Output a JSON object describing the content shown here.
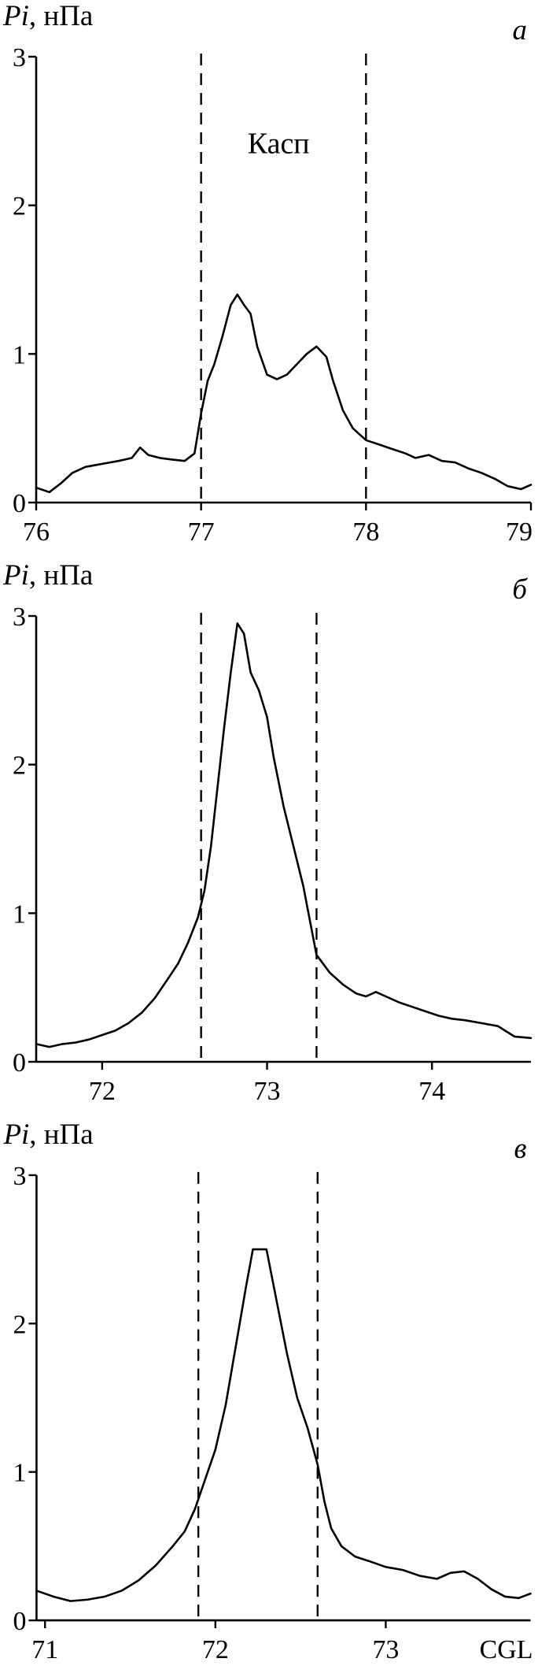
{
  "style": {
    "ink_color": "#000000",
    "background": "#ffffff"
  },
  "chart_data": [
    {
      "type": "line",
      "panel_label": "а",
      "ylabel": "Pi, нПа",
      "ylabel_var": "Pi",
      "ylabel_unit": ", нПа",
      "xlim": [
        76,
        79
      ],
      "ylim": [
        0,
        3
      ],
      "xticks": [
        76,
        77,
        78,
        79
      ],
      "yticks": [
        0,
        1,
        2,
        3
      ],
      "dashed_lines": [
        77,
        78
      ],
      "annotations": [
        {
          "text": "Касп",
          "x": 77.47,
          "y": 2.35
        }
      ],
      "x": [
        76.0,
        76.08,
        76.15,
        76.22,
        76.3,
        76.4,
        76.5,
        76.58,
        76.63,
        76.68,
        76.75,
        76.82,
        76.9,
        76.96,
        77.0,
        77.04,
        77.08,
        77.13,
        77.18,
        77.22,
        77.26,
        77.3,
        77.34,
        77.4,
        77.46,
        77.52,
        77.58,
        77.64,
        77.7,
        77.76,
        77.8,
        77.86,
        77.92,
        78.0,
        78.08,
        78.16,
        78.24,
        78.3,
        78.38,
        78.46,
        78.54,
        78.62,
        78.7,
        78.78,
        78.86,
        78.94,
        79.0
      ],
      "y": [
        0.1,
        0.07,
        0.13,
        0.2,
        0.24,
        0.26,
        0.28,
        0.3,
        0.37,
        0.32,
        0.3,
        0.29,
        0.28,
        0.33,
        0.6,
        0.82,
        0.93,
        1.12,
        1.33,
        1.4,
        1.33,
        1.27,
        1.05,
        0.86,
        0.83,
        0.86,
        0.93,
        1.0,
        1.05,
        0.98,
        0.82,
        0.62,
        0.5,
        0.42,
        0.39,
        0.36,
        0.33,
        0.3,
        0.32,
        0.28,
        0.27,
        0.23,
        0.2,
        0.16,
        0.11,
        0.09,
        0.12
      ]
    },
    {
      "type": "line",
      "panel_label": "б",
      "ylabel": "Pi, нПа",
      "ylabel_var": "Pi",
      "ylabel_unit": ", нПа",
      "xlim": [
        71.6,
        74.6
      ],
      "ylim": [
        0,
        3
      ],
      "xticks": [
        72,
        73,
        74
      ],
      "yticks": [
        0,
        1,
        2,
        3
      ],
      "dashed_lines": [
        72.6,
        73.3
      ],
      "annotations": [],
      "x": [
        71.6,
        71.68,
        71.76,
        71.84,
        71.92,
        72.0,
        72.08,
        72.16,
        72.24,
        72.32,
        72.4,
        72.46,
        72.52,
        72.58,
        72.62,
        72.66,
        72.7,
        72.74,
        72.78,
        72.82,
        72.86,
        72.9,
        72.95,
        73.0,
        73.04,
        73.1,
        73.16,
        73.22,
        73.26,
        73.3,
        73.38,
        73.46,
        73.54,
        73.6,
        73.66,
        73.72,
        73.8,
        73.88,
        73.96,
        74.04,
        74.12,
        74.2,
        74.3,
        74.4,
        74.5,
        74.6
      ],
      "y": [
        0.12,
        0.1,
        0.12,
        0.13,
        0.15,
        0.18,
        0.21,
        0.26,
        0.33,
        0.43,
        0.56,
        0.66,
        0.8,
        0.97,
        1.15,
        1.45,
        1.85,
        2.25,
        2.62,
        2.95,
        2.88,
        2.62,
        2.5,
        2.32,
        2.05,
        1.72,
        1.45,
        1.18,
        0.95,
        0.72,
        0.6,
        0.52,
        0.46,
        0.44,
        0.47,
        0.44,
        0.4,
        0.37,
        0.34,
        0.31,
        0.29,
        0.28,
        0.26,
        0.24,
        0.17,
        0.16
      ]
    },
    {
      "type": "line",
      "panel_label": "в",
      "ylabel": "Pi, нПа",
      "ylabel_var": "Pi",
      "ylabel_unit": ", нПа",
      "x_axis_label": "CGL",
      "xlim": [
        70.95,
        73.85
      ],
      "ylim": [
        0,
        3
      ],
      "xticks": [
        71,
        72,
        73
      ],
      "yticks": [
        0,
        1,
        2,
        3
      ],
      "dashed_lines": [
        71.9,
        72.6
      ],
      "annotations": [],
      "x": [
        70.95,
        71.05,
        71.15,
        71.25,
        71.35,
        71.45,
        71.55,
        71.65,
        71.75,
        71.82,
        71.88,
        71.94,
        72.0,
        72.06,
        72.12,
        72.18,
        72.22,
        72.3,
        72.36,
        72.42,
        72.48,
        72.54,
        72.6,
        72.64,
        72.68,
        72.74,
        72.82,
        72.9,
        73.0,
        73.1,
        73.2,
        73.3,
        73.38,
        73.46,
        73.54,
        73.62,
        73.7,
        73.78,
        73.85
      ],
      "y": [
        0.2,
        0.16,
        0.13,
        0.14,
        0.16,
        0.2,
        0.27,
        0.37,
        0.5,
        0.6,
        0.75,
        0.95,
        1.15,
        1.45,
        1.85,
        2.25,
        2.5,
        2.5,
        2.15,
        1.8,
        1.5,
        1.3,
        1.05,
        0.8,
        0.62,
        0.5,
        0.43,
        0.4,
        0.36,
        0.34,
        0.3,
        0.28,
        0.32,
        0.33,
        0.28,
        0.21,
        0.16,
        0.15,
        0.18
      ]
    }
  ]
}
